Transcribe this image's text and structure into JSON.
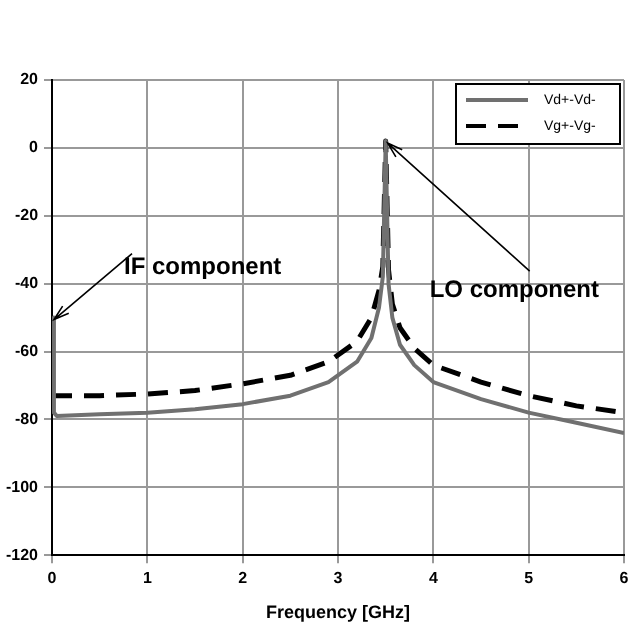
{
  "chart_data": {
    "type": "line",
    "xlabel": "Frequency [GHz]",
    "xlim": [
      0,
      6
    ],
    "xticks": [
      0,
      1,
      2,
      3,
      4,
      5,
      6
    ],
    "ylim": [
      -120,
      20
    ],
    "yticks": [
      -120,
      -100,
      -80,
      -60,
      -40,
      -20,
      0,
      20
    ],
    "grid": true,
    "legend": "top right",
    "marker": "none",
    "series": [
      {
        "name": "Vd+-Vd-",
        "color": "#707070",
        "line_style": "solid",
        "x": [
          0,
          0.02,
          0.05,
          0.5,
          1,
          1.5,
          2,
          2.5,
          2.9,
          3.2,
          3.35,
          3.43,
          3.47,
          3.5,
          3.53,
          3.57,
          3.65,
          3.8,
          4,
          4.5,
          5,
          5.5,
          6
        ],
        "values": [
          -50,
          -78,
          -79,
          -78.5,
          -78,
          -77,
          -75.5,
          -73,
          -69,
          -63,
          -56,
          -47,
          -38,
          2,
          -40,
          -50,
          -58,
          -64,
          -69,
          -74,
          -78,
          -81,
          -84
        ]
      },
      {
        "name": "Vg+-Vg-",
        "color": "#000000",
        "line_style": "dashed",
        "x": [
          0,
          0.5,
          1,
          1.5,
          2,
          2.5,
          2.9,
          3.2,
          3.35,
          3.43,
          3.47,
          3.5,
          3.53,
          3.57,
          3.65,
          3.8,
          4,
          4.5,
          5,
          5.5,
          6
        ],
        "values": [
          -73,
          -73,
          -72.5,
          -71.5,
          -69.5,
          -67,
          -63,
          -57,
          -50,
          -42,
          -35,
          2,
          -36,
          -46,
          -53,
          -59,
          -64,
          -69,
          -73,
          -76,
          -78
        ]
      }
    ],
    "annotations": [
      {
        "text": "IF component",
        "x": 0,
        "y": -50
      },
      {
        "text": "LO component",
        "x": 3.5,
        "y": 2
      }
    ]
  }
}
